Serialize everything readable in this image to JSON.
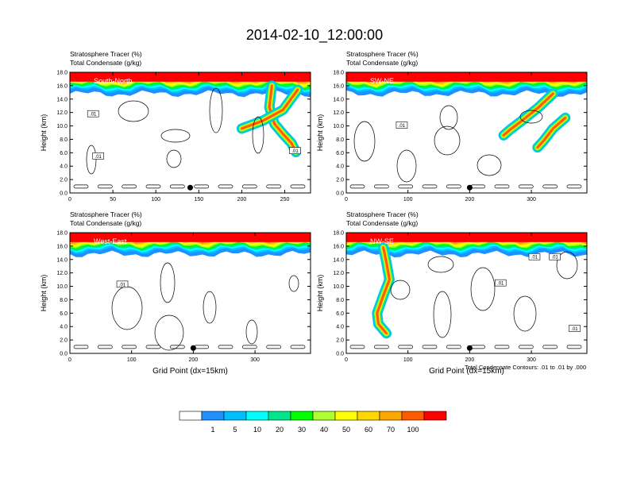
{
  "figure_title": "2014-02-10_12:00:00",
  "colorbar": {
    "colors": [
      "#ffffff",
      "#1e90ff",
      "#00bfff",
      "#00ffff",
      "#00e58c",
      "#00ff00",
      "#adff2f",
      "#ffff00",
      "#ffd700",
      "#ffa500",
      "#ff5a00",
      "#ff0000"
    ],
    "labels": [
      "1",
      "5",
      "10",
      "20",
      "30",
      "40",
      "50",
      "60",
      "70",
      "100"
    ]
  },
  "contour_note": "Total Condensate Contours: .01 to .01 by .000",
  "chart_data": [
    {
      "type": "heatmap",
      "label": "South-North",
      "title_line1": "Stratosphere Tracer   (%)",
      "title_line2": "Total Condensate   (g/kg)",
      "ylabel": "Height (km)",
      "xlabel": "",
      "xlim": [
        0,
        280
      ],
      "ylim": [
        0,
        18
      ],
      "xticks": [
        0,
        50,
        100,
        150,
        200,
        250
      ],
      "yticks": [
        "0.0",
        "2.0",
        "4.0",
        "6.0",
        "8.0",
        "10.0",
        "12.0",
        "14.0",
        "16.0",
        "18.0"
      ],
      "tropopause_km": 16.0,
      "intrusions": [
        {
          "x": [
            235,
            232,
            238,
            248,
            258,
            263
          ],
          "y": [
            16.0,
            12.8,
            10.3,
            8.8,
            7.4,
            6.1
          ]
        },
        {
          "x": [
            265,
            248,
            225,
            200
          ],
          "y": [
            15.4,
            12.4,
            10.8,
            9.6
          ]
        }
      ],
      "marker": {
        "x": 140,
        "y": 0.8
      },
      "contour_labels": [
        {
          "text": ".01",
          "x": 27,
          "y": 11.7
        },
        {
          "text": ".01",
          "x": 33,
          "y": 5.4
        },
        {
          "text": ".01",
          "x": 262,
          "y": 6.2
        }
      ]
    },
    {
      "type": "heatmap",
      "label": "SW-NE",
      "title_line1": "Stratosphere Tracer   (%)",
      "title_line2": "Total Condensate   (g/kg)",
      "ylabel": "Height (km)",
      "xlabel": "",
      "xlim": [
        0,
        390
      ],
      "ylim": [
        0,
        18
      ],
      "xticks": [
        0,
        100,
        200,
        300
      ],
      "yticks": [
        "0.0",
        "2.0",
        "4.0",
        "6.0",
        "8.0",
        "10.0",
        "12.0",
        "14.0",
        "16.0",
        "18.0"
      ],
      "tropopause_km": 16.0,
      "intrusions": [
        {
          "x": [
            335,
            312,
            285,
            265,
            255
          ],
          "y": [
            14.8,
            12.8,
            10.8,
            9.4,
            8.6
          ]
        },
        {
          "x": [
            355,
            335,
            320,
            310
          ],
          "y": [
            11.2,
            9.6,
            7.8,
            6.8
          ]
        }
      ],
      "marker": {
        "x": 200,
        "y": 0.8
      },
      "contour_labels": [
        {
          "text": ".01",
          "x": 90,
          "y": 10.0
        }
      ]
    },
    {
      "type": "heatmap",
      "label": "West-East",
      "title_line1": "Stratosphere Tracer   (%)",
      "title_line2": "Total Condensate   (g/kg)",
      "ylabel": "Height (km)",
      "xlabel": "Grid Point (dx=15km)",
      "xlim": [
        0,
        390
      ],
      "ylim": [
        0,
        18
      ],
      "xticks": [
        0,
        100,
        200,
        300
      ],
      "yticks": [
        "0.0",
        "2.0",
        "4.0",
        "6.0",
        "8.0",
        "10.0",
        "12.0",
        "14.0",
        "16.0",
        "18.0"
      ],
      "tropopause_km": 16.0,
      "intrusions": [],
      "marker": {
        "x": 200,
        "y": 0.8
      },
      "contour_labels": [
        {
          "text": ".01",
          "x": 85,
          "y": 10.2
        }
      ]
    },
    {
      "type": "heatmap",
      "label": "NW-SE",
      "title_line1": "Stratosphere Tracer   (%)",
      "title_line2": "Total Condensate   (g/kg)",
      "ylabel": "Height (km)",
      "xlabel": "Grid Point (dx=15km)",
      "xlim": [
        0,
        390
      ],
      "ylim": [
        0,
        18
      ],
      "xticks": [
        0,
        100,
        200,
        300
      ],
      "yticks": [
        "0.0",
        "2.0",
        "4.0",
        "6.0",
        "8.0",
        "10.0",
        "12.0",
        "14.0",
        "16.0",
        "18.0"
      ],
      "tropopause_km": 16.0,
      "intrusions": [
        {
          "x": [
            60,
            65,
            70,
            60,
            50,
            52,
            65
          ],
          "y": [
            15.8,
            13.6,
            11.0,
            8.6,
            6.0,
            4.4,
            3.0
          ]
        }
      ],
      "marker": {
        "x": 200,
        "y": 0.8
      },
      "contour_labels": [
        {
          "text": ".01",
          "x": 305,
          "y": 14.3
        },
        {
          "text": ".01",
          "x": 338,
          "y": 14.3
        },
        {
          "text": ".01",
          "x": 250,
          "y": 10.4
        },
        {
          "text": ".01",
          "x": 370,
          "y": 3.6
        }
      ]
    }
  ]
}
